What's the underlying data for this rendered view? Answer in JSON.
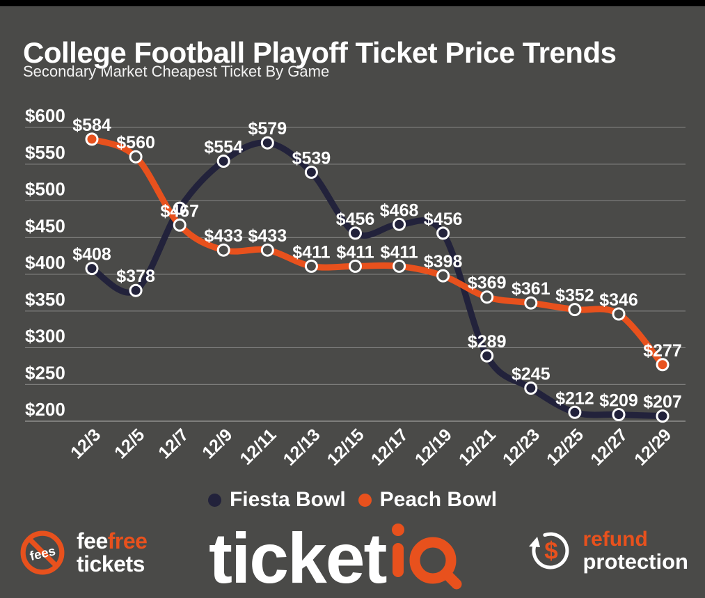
{
  "header": {
    "title": "College Football Playoff Ticket Price Trends",
    "subtitle": "Secondary Market Cheapest Ticket By Game"
  },
  "chart_data": {
    "type": "line",
    "title": "College Football Playoff Ticket Price Trends",
    "subtitle": "Secondary Market Cheapest Ticket By Game",
    "x": [
      "12/3",
      "12/5",
      "12/7",
      "12/9",
      "12/11",
      "12/13",
      "12/15",
      "12/17",
      "12/19",
      "12/21",
      "12/23",
      "12/25",
      "12/27",
      "12/29"
    ],
    "series": [
      {
        "name": "Fiesta Bowl",
        "color": "#22223b",
        "marker_fill": "line",
        "values": [
          408,
          378,
          490,
          554,
          579,
          539,
          456,
          468,
          456,
          289,
          245,
          212,
          209,
          207
        ],
        "label_hidden_indices": [
          2
        ]
      },
      {
        "name": "Peach Bowl",
        "color": "#e8511d",
        "marker_fill": "background",
        "solid_marker_indices": [
          0,
          13
        ],
        "values": [
          584,
          560,
          467,
          433,
          433,
          411,
          411,
          411,
          398,
          369,
          361,
          352,
          346,
          277
        ]
      }
    ],
    "xlabel": "",
    "ylabel": "",
    "ylim": [
      200,
      600
    ],
    "y_ticks": [
      600,
      550,
      500,
      450,
      400,
      350,
      300,
      250,
      200
    ],
    "value_prefix": "$",
    "grid": true,
    "legend_position": "bottom"
  },
  "footer": {
    "fee_free": {
      "badge_text": "fees",
      "word1": "fee",
      "word2": "free",
      "word3": "tickets"
    },
    "ticketiq": {
      "word_white": "ticket",
      "word_orange": "iq"
    },
    "refund": {
      "dollar": "$",
      "word1": "refund",
      "word2": "protection"
    }
  },
  "colors": {
    "background": "#4a4a48",
    "top_bar": "#000000",
    "navy": "#22223b",
    "orange": "#e8511d",
    "grid_line": "rgba(255,255,255,0.33)",
    "text": "#ffffff"
  }
}
